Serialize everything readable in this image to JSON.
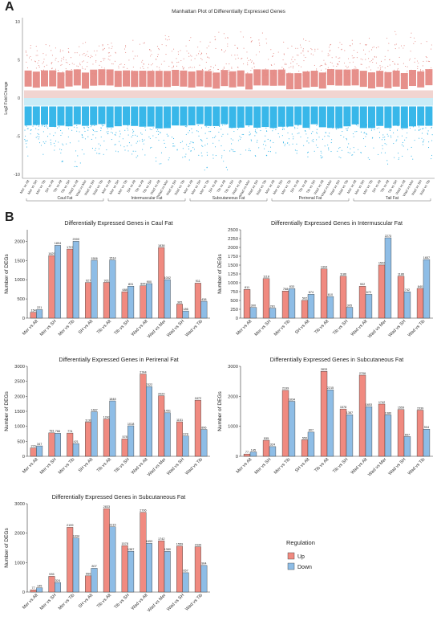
{
  "panels": {
    "a": "A",
    "b": "B"
  },
  "colors": {
    "up": "#e58a85",
    "down": "#2db3e8",
    "band": "#f1d4d0",
    "band2": "#c9ecf7",
    "legend_up": "#f08a80",
    "legend_down": "#8ebde6"
  },
  "legend": {
    "title": "Regulation",
    "up": "Up",
    "down": "Down"
  },
  "chart_data": [
    {
      "type": "scatter",
      "title": "Manhattan Plot of Differentially Expressed Genes",
      "ylabel": "Log2 Fold Change",
      "ylim": [
        -10.5,
        10.5
      ],
      "yticks": [
        -10,
        -5,
        0,
        5,
        10
      ],
      "categories": [
        "Mer vs Alt",
        "Mer vs SH",
        "Mer vs Tib",
        "SH vs Alt",
        "Tib vs Alt",
        "Tib vs SH",
        "Wad vs Alt",
        "Wad vs Mer",
        "Wad vs SH",
        "Wad vs Tib",
        "Mer vs Alt",
        "Mer vs SH",
        "Mer vs Tib",
        "SH vs Alt",
        "Tib vs Alt",
        "Tib vs SH",
        "Wad vs Alt",
        "Wad vs Mer",
        "Wad vs SH",
        "Wad vs Tib",
        "Mer vs Alt",
        "Mer vs SH",
        "Mer vs Tib",
        "SH vs Alt",
        "Tib vs Alt",
        "Tib vs SH",
        "Wad vs Alt",
        "Wad vs Mer",
        "Wad vs SH",
        "Wad vs Tib",
        "Mer vs Alt",
        "Mer vs SH",
        "Mer vs Tib",
        "SH vs Alt",
        "Tib vs Alt",
        "Tib vs SH",
        "Wad vs Alt",
        "Wad vs Mer",
        "Wad vs SH",
        "Wad vs Tib",
        "Mer vs Alt",
        "Mer vs SH",
        "Mer vs Tib",
        "SH vs Alt",
        "Tib vs Alt",
        "Tib vs SH",
        "Wad vs Alt",
        "Wad vs Mer",
        "Wad vs SH",
        "Wad vs Tib"
      ],
      "groups": [
        {
          "name": "Caul Fat",
          "count": 10
        },
        {
          "name": "Intermuscular Fat",
          "count": 10
        },
        {
          "name": "Subcutaneous Fat",
          "count": 10
        },
        {
          "name": "Perirenal Fat",
          "count": 10
        },
        {
          "name": "Tail Fat",
          "count": 10
        }
      ],
      "up_band": [
        0,
        1
      ],
      "down_band": [
        -1,
        0
      ],
      "series": [
        {
          "name": "Up",
          "max": [
            7.5,
            6.8,
            7.2,
            7.0,
            7.8,
            6.5,
            7.3,
            7.6,
            6.9,
            7.1,
            7.4,
            6.6,
            7.0,
            8.2,
            7.5,
            6.8,
            7.2,
            8.5,
            6.9,
            7.3,
            8.0,
            7.4,
            9.5,
            8.8,
            9.9,
            7.6,
            9.2,
            8.1,
            7.8,
            8.6,
            7.0,
            7.5,
            6.9,
            7.3,
            7.8,
            6.6,
            7.4,
            7.1,
            7.9,
            7.2,
            7.6,
            7.3,
            7.8,
            7.1,
            9.5,
            8.9,
            7.6,
            8.8,
            7.5,
            7.4
          ]
        },
        {
          "name": "Down",
          "min": [
            -7.8,
            -7.2,
            -8.0,
            -7.5,
            -8.5,
            -7.0,
            -9.4,
            -8.1,
            -7.3,
            -7.9,
            -7.6,
            -8.3,
            -7.4,
            -7.8,
            -8.2,
            -7.1,
            -9.0,
            -8.6,
            -7.5,
            -7.9,
            -8.1,
            -7.6,
            -9.6,
            -8.4,
            -9.8,
            -7.2,
            -8.9,
            -8.3,
            -7.7,
            -8.5,
            -7.3,
            -7.8,
            -7.0,
            -7.6,
            -8.1,
            -7.4,
            -7.9,
            -7.2,
            -8.0,
            -7.5,
            -7.7,
            -7.4,
            -8.2,
            -7.6,
            -8.9,
            -8.5,
            -7.8,
            -9.1,
            -7.6,
            -8.3
          ]
        }
      ]
    },
    {
      "type": "bar",
      "title": "Differentially Expressed Genes in Caul Fat",
      "ylabel": "Number of DEGs",
      "ylim": [
        0,
        2300
      ],
      "yticks": [
        0,
        500,
        1000,
        1500,
        2000
      ],
      "categories": [
        "Mer vs Alt",
        "Mer vs SH",
        "Mer vs Tib",
        "SH vs Alt",
        "Tib vs Alt",
        "Tib vs SH",
        "Wad vs Alt",
        "Wad vs Mer",
        "Wad vs SH",
        "Wad vs Tib"
      ],
      "series": [
        {
          "name": "Up",
          "values": [
            154,
            1629,
            1797,
            927,
            931,
            688,
            844,
            1838,
            365,
            911
          ]
        },
        {
          "name": "Down",
          "values": [
            221,
            1894,
            2000,
            1506,
            1514,
            831,
            900,
            1002,
            186,
            438
          ]
        }
      ]
    },
    {
      "type": "bar",
      "title": "Differentially Expressed Genes in Intermuscular Fat",
      "ylabel": "Number of DEGs",
      "ylim": [
        0,
        2500
      ],
      "yticks": [
        0,
        250,
        500,
        750,
        1000,
        1250,
        1500,
        1750,
        2000,
        2250,
        2500
      ],
      "categories": [
        "Mer vs Alt",
        "Mer vs SH",
        "Mer vs Tib",
        "SH vs Alt",
        "Tib vs Alt",
        "Tib vs SH",
        "Wad vs Alt",
        "Wad vs Mer",
        "Wad vs SH",
        "Wad vs Tib"
      ],
      "series": [
        {
          "name": "Up",
          "values": [
            811,
            1118,
            768,
            502,
            1394,
            1186,
            902,
            1502,
            1186,
            840
          ]
        },
        {
          "name": "Down",
          "values": [
            300,
            281,
            833,
            674,
            610,
            305,
            672,
            2273,
            742,
            1657
          ]
        }
      ]
    },
    {
      "type": "bar",
      "title": "Differentially Expressed Genes in Perirenal Fat",
      "ylabel": "Number of DEGs",
      "ylim": [
        0,
        3000
      ],
      "yticks": [
        0,
        500,
        1000,
        1500,
        2000,
        2500,
        3000
      ],
      "categories": [
        "Mer vs Alt",
        "Mer vs SH",
        "Mer vs Tib",
        "SH vs Alt",
        "Tib vs Alt",
        "Tib vs SH",
        "Wad vs Alt",
        "Wad vs Mer",
        "Wad vs SH",
        "Wad vs Tib"
      ],
      "series": [
        {
          "name": "Up",
          "values": [
            279,
            781,
            774,
            1139,
            1242,
            578,
            2744,
            2020,
            1151,
            1872
          ]
        },
        {
          "name": "Down",
          "values": [
            347,
            766,
            421,
            1487,
            1848,
            1018,
            2322,
            1451,
            678,
            896
          ]
        }
      ]
    },
    {
      "type": "bar",
      "title": "Differentially Expressed Genes in Subcutaneous Fat",
      "ylabel": "Number of DEGs",
      "ylim": [
        0,
        3000
      ],
      "yticks": [
        0,
        1000,
        2000,
        3000
      ],
      "categories": [
        "Mer vs Alt",
        "Mer vs SH",
        "Mer vs Tib",
        "SH vs Alt",
        "Tib vs Alt",
        "Tib vs SH",
        "Wad vs Alt",
        "Wad vs Mer",
        "Wad vs SH",
        "Wad vs Tib"
      ],
      "series": [
        {
          "name": "Up",
          "values": [
            77,
            535,
            2199,
            550,
            2833,
            1578,
            2706,
            1742,
            1559,
            1539
          ]
        },
        {
          "name": "Down",
          "values": [
            145,
            324,
            1834,
            807,
            2215,
            1387,
            1653,
            1380,
            657,
            904
          ]
        }
      ]
    },
    {
      "type": "bar",
      "title": "Differentially Expressed Genes in Subcutaneous Fat",
      "ylabel": "Number of DEGs",
      "ylim": [
        0,
        3000
      ],
      "yticks": [
        0,
        1000,
        2000,
        3000
      ],
      "categories": [
        "Mer vs Alt",
        "Mer vs SH",
        "Mer vs Tib",
        "SH vs Alt",
        "Tib vs Alt",
        "Tib vs SH",
        "Wad vs Alt",
        "Wad vs Mer",
        "Wad vs SH",
        "Wad vs Tib"
      ],
      "series": [
        {
          "name": "Up",
          "values": [
            77,
            535,
            2199,
            550,
            2833,
            1578,
            2706,
            1742,
            1559,
            1539
          ]
        },
        {
          "name": "Down",
          "values": [
            145,
            324,
            1834,
            807,
            2215,
            1387,
            1653,
            1380,
            657,
            904
          ]
        }
      ]
    }
  ]
}
